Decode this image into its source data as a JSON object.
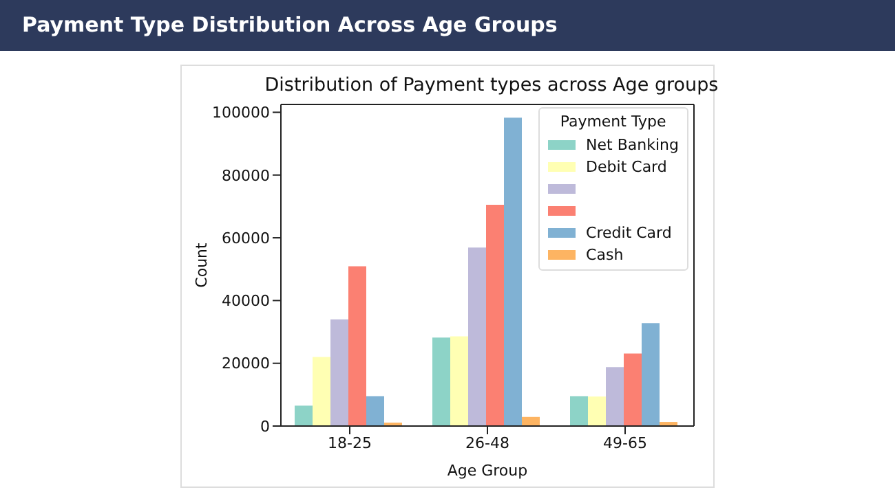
{
  "chart_data": {
    "type": "bar",
    "title": "Payment Type Distribution Across Age Groups",
    "subtitle": "Distribution of Payment types across Age groups",
    "xlabel": "Age Group",
    "ylabel": "Count",
    "legend_title": "Payment Type",
    "categories": [
      "18-25",
      "26-48",
      "49-65"
    ],
    "series": [
      {
        "name": "Net Banking",
        "color": "#8dd3c7",
        "values": [
          6500,
          28200,
          9500
        ]
      },
      {
        "name": "Debit Card",
        "color": "#ffffb3",
        "values": [
          22000,
          28600,
          9400
        ]
      },
      {
        "color": "#bebada",
        "values": [
          34000,
          56900,
          18800
        ]
      },
      {
        "color": "#fb8072",
        "values": [
          50900,
          70500,
          23100
        ]
      },
      {
        "name": "Credit Card",
        "color": "#80b1d3",
        "values": [
          9500,
          98300,
          32800
        ]
      },
      {
        "name": "Cash",
        "color": "#fdb462",
        "values": [
          1100,
          2900,
          1300
        ]
      }
    ],
    "ylim": [
      0,
      102500
    ],
    "yticks": [
      0,
      20000,
      40000,
      60000,
      80000,
      100000
    ],
    "grid": false,
    "legend": "top right"
  }
}
